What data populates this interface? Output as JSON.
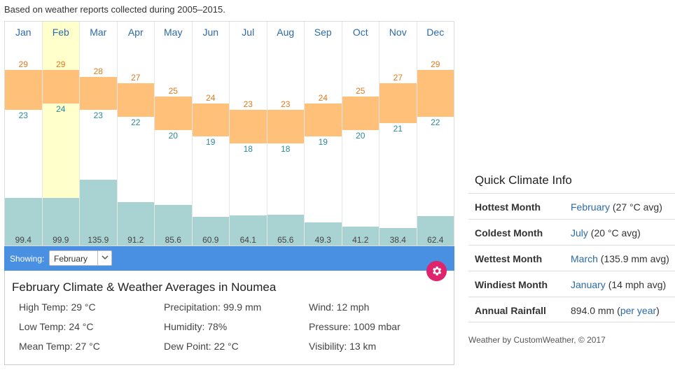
{
  "caption": "Based on weather reports collected during 2005–2015.",
  "months": [
    {
      "name": "Jan",
      "high": 29,
      "low": 23,
      "rain": "99.4"
    },
    {
      "name": "Feb",
      "high": 29,
      "low": 24,
      "rain": "99.9"
    },
    {
      "name": "Mar",
      "high": 28,
      "low": 23,
      "rain": "135.9"
    },
    {
      "name": "Apr",
      "high": 27,
      "low": 22,
      "rain": "91.2"
    },
    {
      "name": "May",
      "high": 25,
      "low": 20,
      "rain": "85.6"
    },
    {
      "name": "Jun",
      "high": 24,
      "low": 19,
      "rain": "60.9"
    },
    {
      "name": "Jul",
      "high": 23,
      "low": 18,
      "rain": "64.1"
    },
    {
      "name": "Aug",
      "high": 23,
      "low": 18,
      "rain": "65.6"
    },
    {
      "name": "Sep",
      "high": 24,
      "low": 19,
      "rain": "49.3"
    },
    {
      "name": "Oct",
      "high": 25,
      "low": 20,
      "rain": "41.2"
    },
    {
      "name": "Nov",
      "high": 27,
      "low": 21,
      "rain": "38.4"
    },
    {
      "name": "Dec",
      "high": 29,
      "low": 22,
      "rain": "62.4"
    }
  ],
  "selected_index": 1,
  "showbar": {
    "label": "Showing:",
    "selected": "February"
  },
  "details": {
    "title": "February Climate & Weather Averages in Noumea",
    "stats": [
      "High Temp: 29 °C",
      "Precipitation: 99.9 mm",
      "Wind: 12 mph",
      "Low Temp: 24 °C",
      "Humidity: 78%",
      "Pressure: 1009 mbar",
      "Mean Temp: 27 °C",
      "Dew Point: 22 °C",
      "Visibility: 13 km"
    ]
  },
  "quick": {
    "title": "Quick Climate Info",
    "rows": [
      {
        "label": "Hottest Month",
        "link": "February",
        "rest": " (27 °C avg)"
      },
      {
        "label": "Coldest Month",
        "link": "July",
        "rest": " (20 °C avg)"
      },
      {
        "label": "Wettest Month",
        "link": "March",
        "rest": " (135.9 mm avg)"
      },
      {
        "label": "Windiest Month",
        "link": "January",
        "rest": " (14 mph avg)"
      },
      {
        "label": "Annual Rainfall",
        "pre": "894.0 mm (",
        "link": "per year",
        "rest": ")"
      }
    ]
  },
  "credit": "Weather by CustomWeather, © 2017",
  "colors": {
    "temp_bar": "#ffc07a",
    "rain_bar": "#a8d3d2",
    "selected_month": "#ffffcc",
    "accent": "#4a90e2",
    "gear": "#e0246c"
  }
}
